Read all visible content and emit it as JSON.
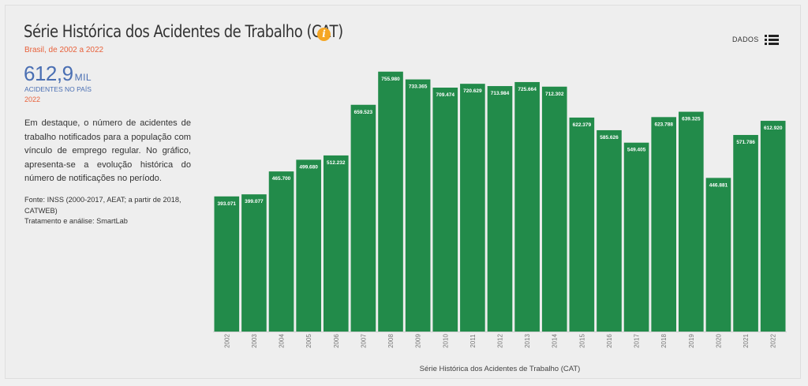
{
  "header": {
    "title": "Série Histórica dos Acidentes de Trabalho (CAT)",
    "subtitle": "Brasil, de 2002 a 2022",
    "info_icon": "info-icon",
    "dados_label": "DADOS",
    "list_icon": "list-icon"
  },
  "highlight": {
    "value": "612,9",
    "unit": "MIL",
    "label": "ACIDENTES NO PAÍS",
    "year": "2022"
  },
  "description": "Em destaque, o número de acidentes de trabalho notificados para a população com vínculo de emprego regular. No gráfico, apresenta-se a evolução histórica do número de notificações no período.",
  "source": {
    "line1": "Fonte: INSS (2000-2017, AEAT; a partir de 2018, CATWEB)",
    "line2": "Tratamento e análise: SmartLab"
  },
  "colors": {
    "bar": "#228b4a",
    "title_accent": "#e8623c",
    "number": "#4a6fb3",
    "info_icon": "#f5a623"
  },
  "chart_data": {
    "type": "bar",
    "xlabel": "Série Histórica dos Acidentes de Trabalho (CAT)",
    "ylabel": "",
    "ylim": [
      0,
      760000
    ],
    "categories": [
      "2002",
      "2003",
      "2004",
      "2005",
      "2006",
      "2007",
      "2008",
      "2009",
      "2010",
      "2011",
      "2012",
      "2013",
      "2014",
      "2015",
      "2016",
      "2017",
      "2018",
      "2019",
      "2020",
      "2021",
      "2022"
    ],
    "values": [
      393071,
      399077,
      465700,
      499680,
      512232,
      659523,
      755980,
      733365,
      709474,
      720629,
      713984,
      725664,
      712302,
      622379,
      585626,
      549405,
      623788,
      639325,
      446881,
      571786,
      612920
    ],
    "labels": [
      "393.071",
      "399.077",
      "465.700",
      "499.680",
      "512.232",
      "659.523",
      "755.980",
      "733.365",
      "709.474",
      "720.629",
      "713.984",
      "725.664",
      "712.302",
      "622.379",
      "585.626",
      "549.405",
      "623.788",
      "639.325",
      "446.881",
      "571.786",
      "612.920"
    ]
  }
}
